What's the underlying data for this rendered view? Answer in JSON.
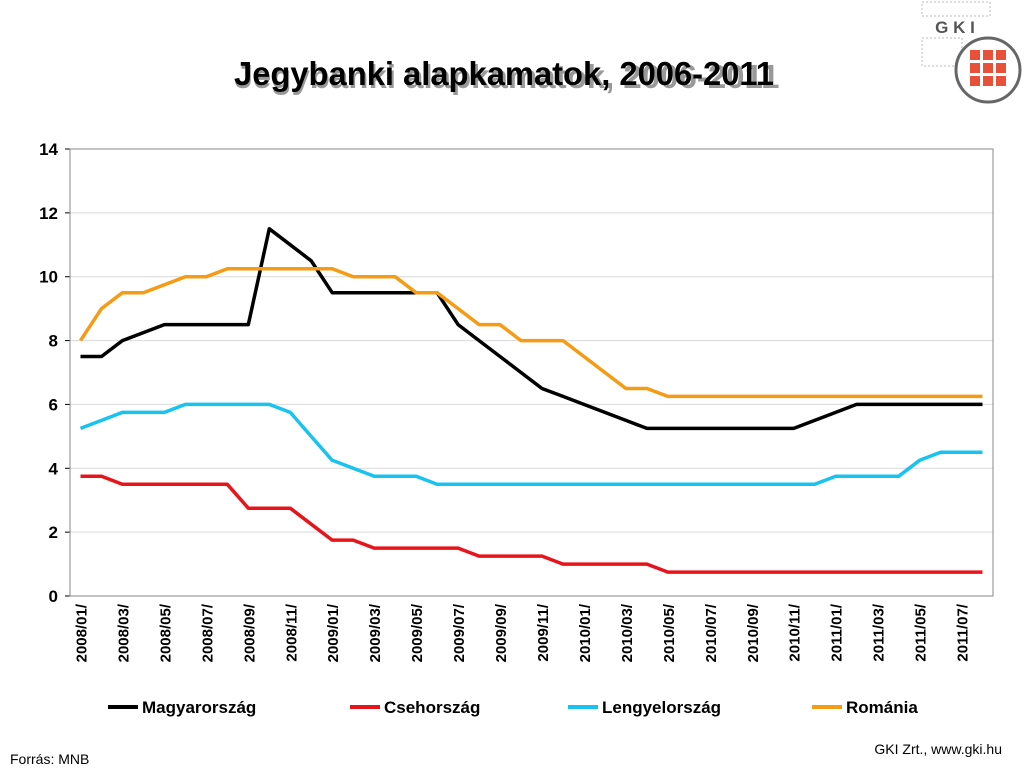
{
  "logo": "G K I",
  "source": "Forrás: MNB",
  "footer": "GKI Zrt., www.gki.hu",
  "chart_data": {
    "type": "line",
    "title": "Jegybanki alapkamatok, 2006-2011",
    "categories": [
      "2008/01/",
      null,
      "2008/03/",
      null,
      "2008/05/",
      null,
      "2008/07/",
      null,
      "2008/09/",
      null,
      "2008/11/",
      null,
      "2009/01/",
      null,
      "2009/03/",
      null,
      "2009/05/",
      null,
      "2009/07/",
      null,
      "2009/09/",
      null,
      "2009/11/",
      null,
      "2010/01/",
      null,
      "2010/03/",
      null,
      "2010/05/",
      null,
      "2010/07/",
      null,
      "2010/09/",
      null,
      "2010/11/",
      null,
      "2011/01/",
      null,
      "2011/03/",
      null,
      "2011/05/",
      null,
      "2011/07/",
      null
    ],
    "series": [
      {
        "name": "Magyarország",
        "color": "#000000",
        "values": [
          7.5,
          7.5,
          8,
          8.25,
          8.5,
          8.5,
          8.5,
          8.5,
          8.5,
          11.5,
          11,
          10.5,
          9.5,
          9.5,
          9.5,
          9.5,
          9.5,
          9.5,
          8.5,
          8,
          7.5,
          7,
          6.5,
          6.25,
          6,
          5.75,
          5.5,
          5.25,
          5.25,
          5.25,
          5.25,
          5.25,
          5.25,
          5.25,
          5.25,
          5.5,
          5.75,
          6,
          6,
          6,
          6,
          6,
          6,
          6
        ]
      },
      {
        "name": "Csehország",
        "color": "#e8141b",
        "values": [
          3.75,
          3.75,
          3.5,
          3.5,
          3.5,
          3.5,
          3.5,
          3.5,
          2.75,
          2.75,
          2.75,
          2.25,
          1.75,
          1.75,
          1.5,
          1.5,
          1.5,
          1.5,
          1.5,
          1.25,
          1.25,
          1.25,
          1.25,
          1,
          1,
          1,
          1,
          1,
          0.75,
          0.75,
          0.75,
          0.75,
          0.75,
          0.75,
          0.75,
          0.75,
          0.75,
          0.75,
          0.75,
          0.75,
          0.75,
          0.75,
          0.75,
          0.75
        ]
      },
      {
        "name": "Lengyelország",
        "color": "#19c3f0",
        "values": [
          5.25,
          5.5,
          5.75,
          5.75,
          5.75,
          6,
          6,
          6,
          6,
          6,
          5.75,
          5,
          4.25,
          4,
          3.75,
          3.75,
          3.75,
          3.5,
          3.5,
          3.5,
          3.5,
          3.5,
          3.5,
          3.5,
          3.5,
          3.5,
          3.5,
          3.5,
          3.5,
          3.5,
          3.5,
          3.5,
          3.5,
          3.5,
          3.5,
          3.5,
          3.75,
          3.75,
          3.75,
          3.75,
          4.25,
          4.5,
          4.5,
          4.5
        ]
      },
      {
        "name": "Románia",
        "color": "#f59b14",
        "values": [
          8,
          9,
          9.5,
          9.5,
          9.75,
          10,
          10,
          10.25,
          10.25,
          10.25,
          10.25,
          10.25,
          10.25,
          10,
          10,
          10,
          9.5,
          9.5,
          9,
          8.5,
          8.5,
          8,
          8,
          8,
          7.5,
          7,
          6.5,
          6.5,
          6.25,
          6.25,
          6.25,
          6.25,
          6.25,
          6.25,
          6.25,
          6.25,
          6.25,
          6.25,
          6.25,
          6.25,
          6.25,
          6.25,
          6.25,
          6.25
        ]
      }
    ],
    "ylim": [
      0,
      14
    ],
    "yticks": [
      0,
      2,
      4,
      6,
      8,
      10,
      12,
      14
    ],
    "grid": true,
    "legend": "bottom"
  }
}
